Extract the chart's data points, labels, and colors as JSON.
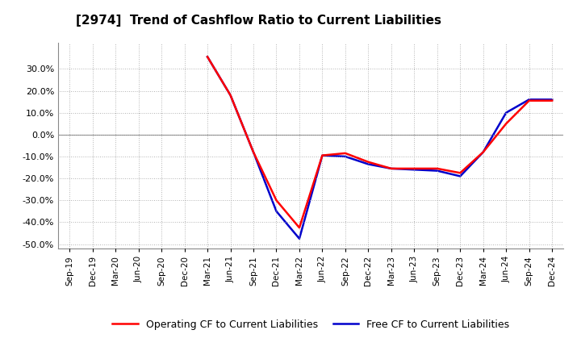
{
  "title": "[2974]  Trend of Cashflow Ratio to Current Liabilities",
  "x_labels": [
    "Sep-19",
    "Dec-19",
    "Mar-20",
    "Jun-20",
    "Sep-20",
    "Dec-20",
    "Mar-21",
    "Jun-21",
    "Sep-21",
    "Dec-21",
    "Mar-22",
    "Jun-22",
    "Sep-22",
    "Dec-22",
    "Mar-23",
    "Jun-23",
    "Sep-23",
    "Dec-23",
    "Mar-24",
    "Jun-24",
    "Sep-24",
    "Dec-24"
  ],
  "op_cf": [
    null,
    null,
    null,
    null,
    null,
    null,
    0.355,
    0.18,
    -0.08,
    -0.3,
    -0.425,
    -0.095,
    -0.085,
    -0.125,
    -0.155,
    -0.155,
    -0.155,
    -0.175,
    -0.08,
    0.05,
    0.155,
    0.155
  ],
  "free_cf": [
    null,
    null,
    null,
    null,
    null,
    null,
    0.355,
    0.18,
    -0.08,
    -0.35,
    -0.475,
    -0.095,
    -0.1,
    -0.135,
    -0.155,
    -0.16,
    -0.165,
    -0.19,
    -0.08,
    0.1,
    0.16,
    0.16
  ],
  "ylim": [
    -0.52,
    0.42
  ],
  "yticks": [
    -0.5,
    -0.4,
    -0.3,
    -0.2,
    -0.1,
    0.0,
    0.1,
    0.2,
    0.3
  ],
  "operating_color": "#FF0000",
  "free_color": "#0000CC",
  "background_color": "#FFFFFF",
  "grid_color": "#AAAAAA",
  "legend_op": "Operating CF to Current Liabilities",
  "legend_free": "Free CF to Current Liabilities"
}
